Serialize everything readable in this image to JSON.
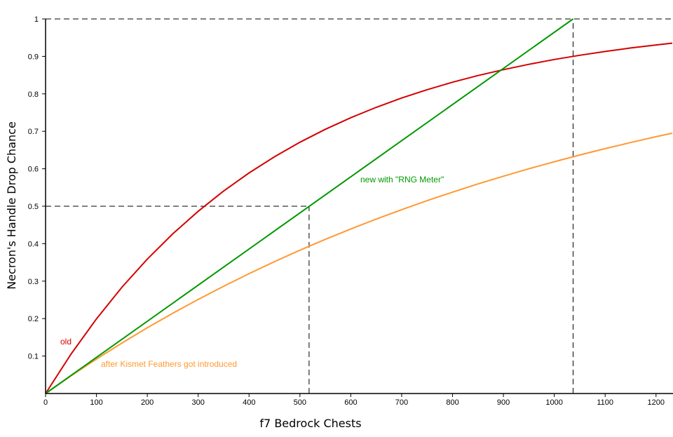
{
  "chart_data": {
    "type": "line",
    "title": "",
    "xlabel": "f7 Bedrock Chests",
    "ylabel": "Necron's Handle Drop Chance",
    "xlim": [
      0,
      1232
    ],
    "ylim": [
      0,
      1
    ],
    "xticks": [
      0,
      100,
      200,
      300,
      400,
      500,
      600,
      700,
      800,
      900,
      1000,
      1100,
      1200
    ],
    "yticks": [
      0.1,
      0.2,
      0.3,
      0.4,
      0.5,
      0.6,
      0.7,
      0.8,
      0.9,
      1
    ],
    "ytick_labels": [
      "0.1",
      "0.2",
      "0.3",
      "0.4",
      "0.5",
      "0.6",
      "0.7",
      "0.8",
      "0.9",
      "1"
    ],
    "grid": false,
    "series": [
      {
        "name": "old",
        "color": "#d40000",
        "x": [
          0,
          50,
          100,
          150,
          200,
          250,
          300,
          350,
          400,
          450,
          500,
          550,
          600,
          650,
          700,
          750,
          800,
          850,
          900,
          950,
          1000,
          1050,
          1100,
          1150,
          1200,
          1232
        ],
        "y": [
          0,
          0.1052,
          0.1993,
          0.2835,
          0.3588,
          0.4262,
          0.4866,
          0.5406,
          0.5889,
          0.6321,
          0.6708,
          0.7054,
          0.7364,
          0.7641,
          0.7889,
          0.8111,
          0.831,
          0.8488,
          0.8647,
          0.8789,
          0.8917,
          0.903,
          0.9132,
          0.9224,
          0.9305,
          0.9353
        ]
      },
      {
        "name": "after Kismet Feathers got introduced",
        "color": "#ff9933",
        "x": [
          0,
          50,
          100,
          150,
          200,
          250,
          300,
          350,
          400,
          450,
          500,
          550,
          600,
          650,
          700,
          750,
          800,
          850,
          900,
          950,
          1000,
          1050,
          1100,
          1150,
          1200,
          1232
        ],
        "y": [
          0,
          0.0471,
          0.0919,
          0.1347,
          0.1754,
          0.2142,
          0.2512,
          0.2864,
          0.3201,
          0.3521,
          0.3826,
          0.4117,
          0.4393,
          0.4657,
          0.4909,
          0.5148,
          0.5377,
          0.5595,
          0.5802,
          0.6,
          0.6188,
          0.6367,
          0.6538,
          0.6701,
          0.6856,
          0.695
        ]
      },
      {
        "name": "new with \"RNG Meter\"",
        "color": "#009900",
        "x": [
          0,
          1037
        ],
        "y": [
          0,
          1
        ]
      }
    ],
    "reference_lines": [
      {
        "style": "dashed",
        "from": [
          0,
          1
        ],
        "to": [
          1232,
          1
        ]
      },
      {
        "style": "dashed",
        "from": [
          0,
          0.5
        ],
        "to": [
          518,
          0.5
        ]
      },
      {
        "style": "dashed",
        "from": [
          518,
          0
        ],
        "to": [
          518,
          0.5
        ]
      },
      {
        "style": "dashed",
        "from": [
          1037,
          0
        ],
        "to": [
          1037,
          1
        ]
      }
    ]
  }
}
